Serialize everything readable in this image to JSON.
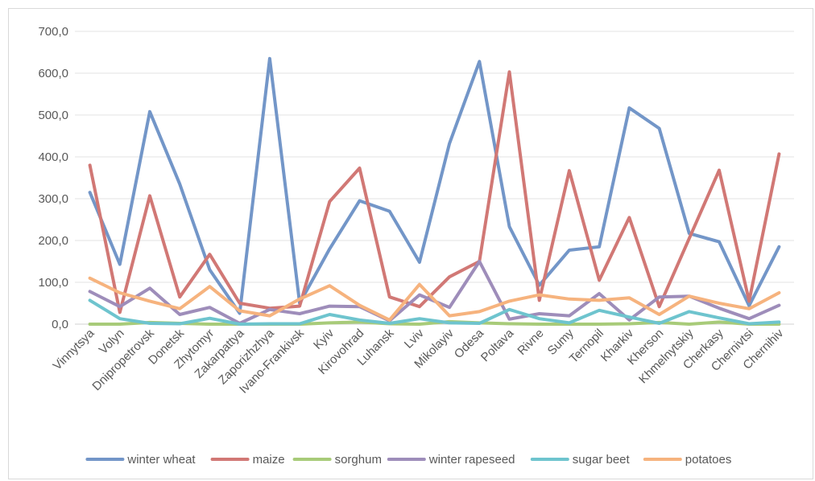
{
  "chart_data": {
    "type": "line",
    "title": "",
    "xlabel": "",
    "ylabel": "",
    "ylim": [
      0,
      700
    ],
    "yticks": [
      "0,0",
      "100,0",
      "200,0",
      "300,0",
      "400,0",
      "500,0",
      "600,0",
      "700,0"
    ],
    "ytick_values": [
      0,
      100,
      200,
      300,
      400,
      500,
      600,
      700
    ],
    "grid": "horizontal",
    "legend_position": "bottom",
    "categories": [
      "Vinnytsya",
      "Volyn",
      "Dnipropetrovsk",
      "Donetsk",
      "Zhytomyr",
      "Zakarpattya",
      "Zaporizhzhya",
      "Ivano-Frankivsk",
      "Kyiv",
      "Kirovohrad",
      "Luhansk",
      "Lviv",
      "Mikolayiv",
      "Odesa",
      "Poltava",
      "Rivne",
      "Sumy",
      "Ternopil",
      "Kharkiv",
      "Kherson",
      "Khmelnytskiy",
      "Cherkasy",
      "Chernivtsi",
      "Chernihiv"
    ],
    "series": [
      {
        "name": "winter wheat",
        "color": "#7396C8",
        "values": [
          315,
          143,
          508,
          335,
          130,
          26,
          635,
          50,
          180,
          295,
          270,
          148,
          432,
          628,
          233,
          93,
          177,
          185,
          517,
          468,
          217,
          197,
          44,
          185
        ]
      },
      {
        "name": "maize",
        "color": "#D17875",
        "values": [
          380,
          28,
          307,
          65,
          167,
          50,
          38,
          43,
          293,
          373,
          65,
          42,
          113,
          150,
          603,
          57,
          367,
          105,
          255,
          42,
          205,
          368,
          55,
          407
        ]
      },
      {
        "name": "sorghum",
        "color": "#A8CB79",
        "values": [
          0,
          0,
          4,
          2,
          0,
          0,
          0,
          0,
          3,
          5,
          1,
          0,
          6,
          3,
          1,
          0,
          0,
          0,
          1,
          4,
          0,
          5,
          0,
          0
        ]
      },
      {
        "name": "winter rapeseed",
        "color": "#9E8DBA",
        "values": [
          78,
          42,
          86,
          23,
          40,
          2,
          35,
          25,
          43,
          42,
          8,
          70,
          40,
          150,
          12,
          25,
          20,
          73,
          10,
          65,
          67,
          38,
          13,
          45
        ]
      },
      {
        "name": "sugar beet",
        "color": "#6EC4CE",
        "values": [
          57,
          13,
          2,
          1,
          14,
          0,
          1,
          1,
          23,
          10,
          2,
          13,
          3,
          2,
          35,
          13,
          3,
          33,
          17,
          2,
          30,
          15,
          1,
          5
        ]
      },
      {
        "name": "potatoes",
        "color": "#F6B37E",
        "values": [
          110,
          75,
          55,
          37,
          90,
          32,
          20,
          60,
          92,
          45,
          10,
          95,
          20,
          30,
          55,
          70,
          60,
          57,
          63,
          23,
          67,
          50,
          37,
          75
        ]
      }
    ]
  }
}
